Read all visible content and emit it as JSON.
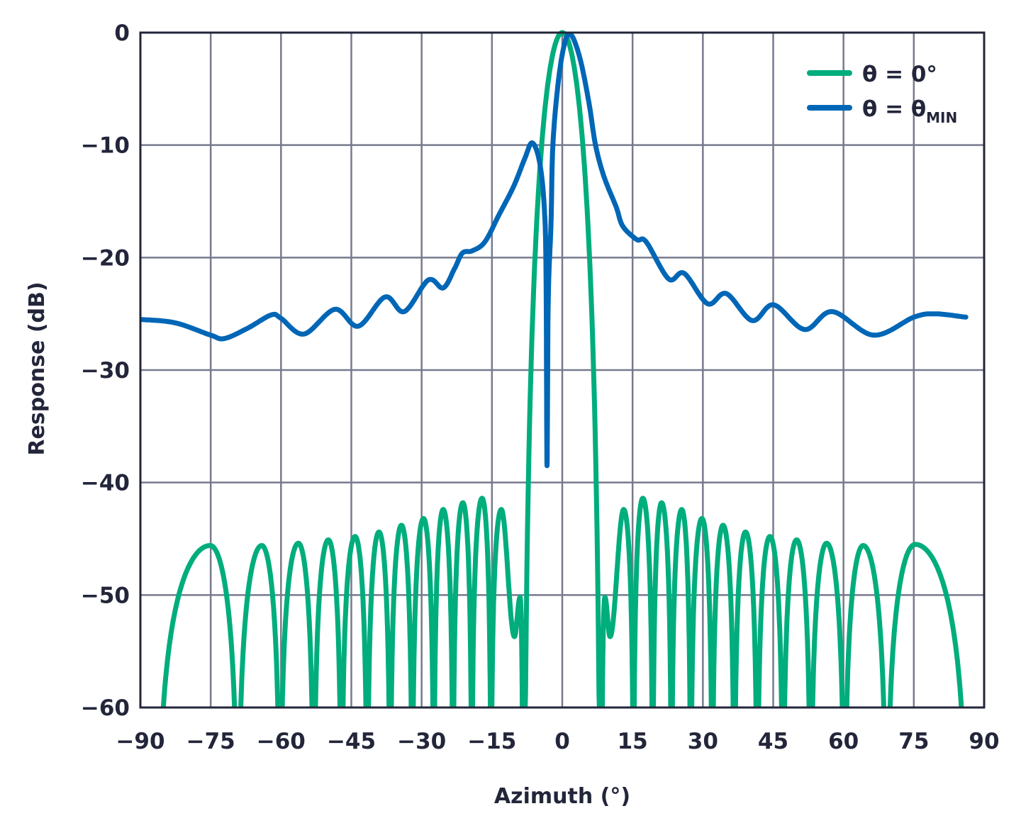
{
  "chart_data": {
    "type": "line",
    "title": "",
    "xlabel": "Azimuth (°)",
    "ylabel": "Response (dB)",
    "xlim": [
      -90,
      90
    ],
    "ylim": [
      -60,
      0
    ],
    "x_ticks": [
      "−90",
      "−75",
      "−60",
      "−45",
      "−30",
      "−15",
      "0",
      "15",
      "30",
      "45",
      "60",
      "75",
      "90"
    ],
    "x_tick_values": [
      -90,
      -75,
      -60,
      -45,
      -30,
      -15,
      0,
      15,
      30,
      45,
      60,
      75,
      90
    ],
    "y_ticks": [
      "0",
      "−10",
      "−20",
      "−30",
      "−40",
      "−50",
      "−60"
    ],
    "y_tick_values": [
      0,
      -10,
      -20,
      -30,
      -40,
      -50,
      -60
    ],
    "grid": true,
    "legend_position": "top-right",
    "series": [
      {
        "name": "θ = 0°",
        "name_main": "θ = 0°",
        "name_sub": "",
        "color": "#00ad7c",
        "note_null_points": "y null = pattern null (response → −∞)",
        "points": [
          [
            -86.5,
            null
          ],
          [
            -75.1,
            -45.6
          ],
          [
            -69.2,
            null
          ],
          [
            -64.1,
            -45.6
          ],
          [
            -60.2,
            null
          ],
          [
            -56.3,
            -45.4
          ],
          [
            -53.0,
            null
          ],
          [
            -49.9,
            -45.1
          ],
          [
            -47.1,
            null
          ],
          [
            -44.2,
            -44.8
          ],
          [
            -41.6,
            null
          ],
          [
            -39.1,
            -44.4
          ],
          [
            -36.7,
            null
          ],
          [
            -34.3,
            -43.8
          ],
          [
            -32.0,
            null
          ],
          [
            -29.6,
            -43.2
          ],
          [
            -27.4,
            null
          ],
          [
            -25.4,
            -42.4
          ],
          [
            -23.3,
            null
          ],
          [
            -21.2,
            -41.8
          ],
          [
            -19.3,
            null
          ],
          [
            -17.1,
            -41.4
          ],
          [
            -15.2,
            null
          ],
          [
            -13.0,
            -42.4
          ],
          [
            -10.2,
            -53.7
          ],
          [
            -9.0,
            -50.2
          ],
          [
            -8.4,
            null
          ],
          [
            0,
            0
          ],
          [
            8.4,
            null
          ],
          [
            9.1,
            -50.2
          ],
          [
            10.2,
            -53.7
          ],
          [
            13.1,
            -42.4
          ],
          [
            15.2,
            null
          ],
          [
            17.2,
            -41.4
          ],
          [
            19.3,
            null
          ],
          [
            21.2,
            -41.8
          ],
          [
            23.3,
            null
          ],
          [
            25.5,
            -42.4
          ],
          [
            27.4,
            null
          ],
          [
            29.8,
            -43.2
          ],
          [
            32.0,
            null
          ],
          [
            34.3,
            -43.8
          ],
          [
            36.7,
            null
          ],
          [
            39.1,
            -44.4
          ],
          [
            41.6,
            null
          ],
          [
            44.3,
            -44.8
          ],
          [
            47.1,
            null
          ],
          [
            50.0,
            -45.1
          ],
          [
            53.0,
            null
          ],
          [
            56.4,
            -45.4
          ],
          [
            60.2,
            null
          ],
          [
            64.2,
            -45.6
          ],
          [
            69.2,
            null
          ],
          [
            75.3,
            -45.5
          ],
          [
            86.5,
            null
          ]
        ]
      },
      {
        "name": "θ = θMIN",
        "name_main": "θ = θ",
        "name_sub": "MIN",
        "color": "#0066b6",
        "points": [
          [
            -90,
            -25.5
          ],
          [
            -82.6,
            -25.8
          ],
          [
            -75,
            -26.9
          ],
          [
            -72.1,
            -27.2
          ],
          [
            -67.2,
            -26.3
          ],
          [
            -62.1,
            -25.1
          ],
          [
            -60,
            -25.4
          ],
          [
            -55.1,
            -26.8
          ],
          [
            -48.5,
            -24.6
          ],
          [
            -43.5,
            -26.1
          ],
          [
            -37.8,
            -23.5
          ],
          [
            -33.7,
            -24.8
          ],
          [
            -28.6,
            -22.0
          ],
          [
            -25.4,
            -22.7
          ],
          [
            -23.0,
            -21.0
          ],
          [
            -21.3,
            -19.6
          ],
          [
            -19.2,
            -19.4
          ],
          [
            -16.5,
            -18.6
          ],
          [
            -13.5,
            -16.2
          ],
          [
            -10.4,
            -13.7
          ],
          [
            -8.0,
            -11.2
          ],
          [
            -6.4,
            -9.8
          ],
          [
            -4.8,
            -11.6
          ],
          [
            -3.8,
            -15.8
          ],
          [
            -3.45,
            -22.0
          ],
          [
            -3.25,
            -38.5
          ],
          [
            -3.0,
            -24.0
          ],
          [
            -2.4,
            -17.0
          ],
          [
            -2.0,
            -10.0
          ],
          [
            -0.8,
            -4.2
          ],
          [
            0.6,
            -0.8
          ],
          [
            1.8,
            -0.2
          ],
          [
            3.0,
            -1.2
          ],
          [
            4.3,
            -3.2
          ],
          [
            5.8,
            -6.5
          ],
          [
            7.1,
            -10.0
          ],
          [
            8.9,
            -12.8
          ],
          [
            11.5,
            -15.5
          ],
          [
            12.9,
            -17.2
          ],
          [
            15.9,
            -18.4
          ],
          [
            17.9,
            -18.6
          ],
          [
            22.7,
            -21.9
          ],
          [
            26.0,
            -21.4
          ],
          [
            31.0,
            -24.1
          ],
          [
            35.0,
            -23.2
          ],
          [
            40.5,
            -25.6
          ],
          [
            45.1,
            -24.2
          ],
          [
            51.7,
            -26.4
          ],
          [
            57.6,
            -24.8
          ],
          [
            66.4,
            -26.9
          ],
          [
            75.0,
            -25.3
          ],
          [
            79.5,
            -25.0
          ],
          [
            86.1,
            -25.3
          ]
        ]
      }
    ]
  }
}
